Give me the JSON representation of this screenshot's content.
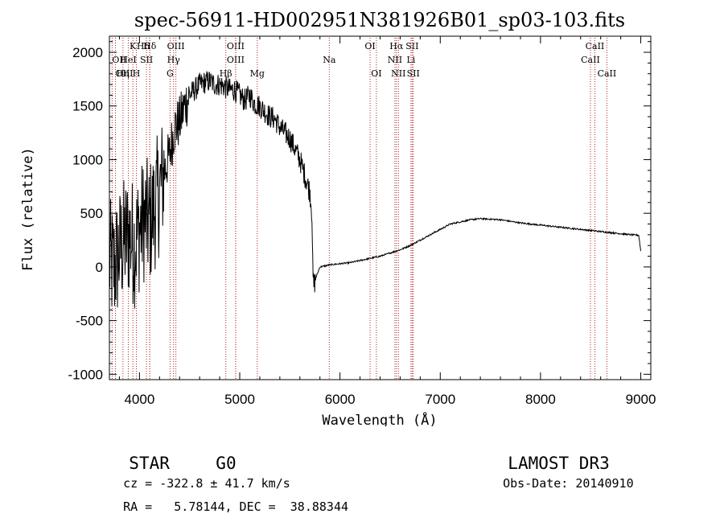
{
  "chart_data": {
    "type": "line",
    "title": "spec-56911-HD002951N381926B01_sp03-103.fits",
    "xlabel": "Wavelength (Å)",
    "ylabel": "Flux (relative)",
    "xlim": [
      3700,
      9100
    ],
    "ylim": [
      -1050,
      2150
    ],
    "xticks": [
      4000,
      5000,
      6000,
      7000,
      8000,
      9000
    ],
    "yticks": [
      -1000,
      -500,
      0,
      500,
      1000,
      1500,
      2000
    ],
    "series": [
      {
        "name": "flux",
        "x": [
          3700,
          3750,
          3800,
          3850,
          3900,
          3950,
          4000,
          4050,
          4100,
          4150,
          4200,
          4250,
          4300,
          4350,
          4400,
          4450,
          4500,
          4550,
          4600,
          4650,
          4700,
          4750,
          4800,
          4850,
          4900,
          4950,
          5000,
          5050,
          5100,
          5150,
          5200,
          5250,
          5300,
          5350,
          5400,
          5450,
          5500,
          5550,
          5600,
          5650,
          5700,
          5720,
          5730,
          5740,
          5760,
          5800,
          5850,
          5900,
          6000,
          6100,
          6200,
          6300,
          6400,
          6500,
          6600,
          6700,
          6800,
          6900,
          7000,
          7100,
          7200,
          7300,
          7400,
          7500,
          7600,
          7700,
          7800,
          7900,
          8000,
          8100,
          8200,
          8300,
          8400,
          8500,
          8600,
          8700,
          8800,
          8900,
          8980,
          9000
        ],
        "y": [
          50,
          0,
          150,
          250,
          300,
          200,
          350,
          450,
          400,
          550,
          700,
          900,
          1050,
          1300,
          1350,
          1500,
          1600,
          1650,
          1700,
          1720,
          1730,
          1700,
          1700,
          1680,
          1650,
          1650,
          1600,
          1550,
          1600,
          1520,
          1500,
          1450,
          1400,
          1380,
          1300,
          1250,
          1200,
          1100,
          1000,
          850,
          700,
          500,
          -100,
          -170,
          -100,
          0,
          10,
          20,
          30,
          40,
          60,
          80,
          100,
          130,
          160,
          200,
          250,
          300,
          350,
          400,
          420,
          440,
          450,
          445,
          440,
          425,
          410,
          400,
          390,
          380,
          370,
          360,
          350,
          340,
          330,
          320,
          310,
          300,
          295,
          150
        ]
      }
    ],
    "lines": [
      {
        "label": "Hδ",
        "x": 4102,
        "row": 0,
        "anchor": "end"
      },
      {
        "label": "K",
        "x": 3934,
        "row": 0,
        "anchor": "middle"
      },
      {
        "label": "Hδ",
        "x": 4103,
        "row": 0,
        "anchor": "middle"
      },
      {
        "label": "OII",
        "x": 3727,
        "row": 1,
        "anchor": "start"
      },
      {
        "label": "HeI",
        "x": 3889,
        "row": 1,
        "anchor": "middle"
      },
      {
        "label": "SII",
        "x": 4070,
        "row": 1,
        "anchor": "middle"
      },
      {
        "label": "OIII",
        "x": 3760,
        "row": 2,
        "anchor": "start"
      },
      {
        "label": "Hη",
        "x": 3835,
        "row": 2,
        "anchor": "middle"
      },
      {
        "label": "H",
        "x": 3969,
        "row": 2,
        "anchor": "middle"
      },
      {
        "label": "OIII",
        "x": 4363,
        "row": 0,
        "anchor": "middle"
      },
      {
        "label": "Hγ",
        "x": 4340,
        "row": 1,
        "anchor": "middle"
      },
      {
        "label": "G",
        "x": 4305,
        "row": 2,
        "anchor": "middle"
      },
      {
        "label": "OIII",
        "x": 4959,
        "row": 0,
        "anchor": "middle"
      },
      {
        "label": "OIII",
        "x": 4959,
        "row": 1,
        "anchor": "middle"
      },
      {
        "label": "Hβ",
        "x": 4861,
        "row": 2,
        "anchor": "middle"
      },
      {
        "label": "Mg",
        "x": 5175,
        "row": 2,
        "anchor": "middle"
      },
      {
        "label": "Na",
        "x": 5893,
        "row": 1,
        "anchor": "middle"
      },
      {
        "label": "OI",
        "x": 6300,
        "row": 0,
        "anchor": "middle"
      },
      {
        "label": "OI",
        "x": 6363,
        "row": 2,
        "anchor": "middle"
      },
      {
        "label": "Hα",
        "x": 6563,
        "row": 0,
        "anchor": "middle"
      },
      {
        "label": "SII",
        "x": 6720,
        "row": 0,
        "anchor": "middle"
      },
      {
        "label": "NII",
        "x": 6548,
        "row": 1,
        "anchor": "middle"
      },
      {
        "label": "Li",
        "x": 6708,
        "row": 1,
        "anchor": "middle"
      },
      {
        "label": "NII",
        "x": 6583,
        "row": 2,
        "anchor": "middle"
      },
      {
        "label": "SII",
        "x": 6731,
        "row": 2,
        "anchor": "middle"
      },
      {
        "label": "CaII",
        "x": 8542,
        "row": 0,
        "anchor": "middle"
      },
      {
        "label": "CaII",
        "x": 8498,
        "row": 1,
        "anchor": "middle"
      },
      {
        "label": "CaII",
        "x": 8662,
        "row": 2,
        "anchor": "middle"
      }
    ]
  },
  "info": {
    "class": "STAR",
    "subclass": "G0",
    "survey": "LAMOST DR3",
    "redshift": "cz = -322.8 ± 41.7 km/s",
    "obsdate": "Obs-Date: 20140910",
    "coords": "RA =   5.78144, DEC =  38.88344"
  }
}
